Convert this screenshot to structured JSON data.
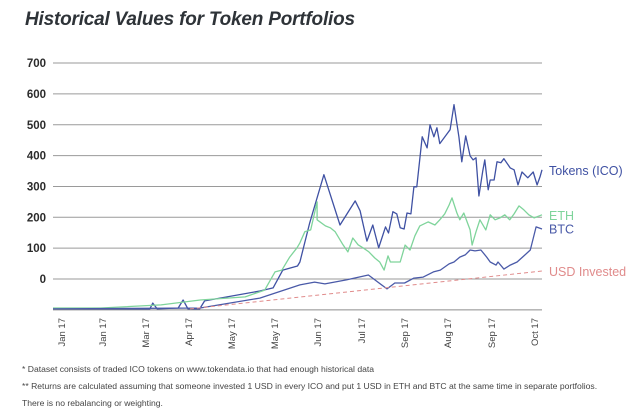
{
  "title": "Historical Values for Token Portfolios",
  "footnotes": [
    "* Dataset consists of traded ICO tokens on www.tokendata.io that had enough historical data",
    "** Returns are calculated assuming that someone invested 1 USD in every ICO and put 1 USD in ETH and BTC at the same time in separate portfolios.",
    "There is no rebalancing or weighting."
  ],
  "chart_data": {
    "type": "line",
    "title": "Historical Values for Token Portfolios",
    "xlabel": "",
    "ylabel": "",
    "ylim": [
      -100,
      700
    ],
    "yticks": [
      0,
      100,
      200,
      300,
      400,
      500,
      600,
      700
    ],
    "ytick_labels": [
      "0",
      "100",
      "200",
      "300",
      "400",
      "500",
      "600",
      "700"
    ],
    "xlim": [
      0,
      1
    ],
    "xticks": [
      0.018,
      0.102,
      0.19,
      0.278,
      0.366,
      0.454,
      0.542,
      0.632,
      0.72,
      0.808,
      0.898,
      0.986
    ],
    "xtick_labels": [
      "Jan 17",
      "Jan 17",
      "Mar 17",
      "Apr 17",
      "May 17",
      "May 17",
      "Jun 17",
      "Jul 17",
      "Sep 17",
      "Aug 17",
      "Sep 17",
      "Oct 17"
    ],
    "grid": true,
    "legend": "right, labels at series end",
    "series": [
      {
        "name": "Tokens (ICO)",
        "color": "#3f51a3",
        "style": "solid",
        "points": [
          [
            0,
            -97
          ],
          [
            0.198,
            -97
          ],
          [
            0.204,
            -78
          ],
          [
            0.213,
            -97
          ],
          [
            0.256,
            -94
          ],
          [
            0.266,
            -68
          ],
          [
            0.276,
            -97
          ],
          [
            0.3,
            -97
          ],
          [
            0.31,
            -71
          ],
          [
            0.423,
            -39
          ],
          [
            0.45,
            -29
          ],
          [
            0.47,
            29
          ],
          [
            0.477,
            32
          ],
          [
            0.5,
            42
          ],
          [
            0.505,
            55
          ],
          [
            0.525,
            182
          ],
          [
            0.554,
            338
          ],
          [
            0.587,
            175
          ],
          [
            0.618,
            253
          ],
          [
            0.628,
            221
          ],
          [
            0.642,
            123
          ],
          [
            0.654,
            175
          ],
          [
            0.666,
            101
          ],
          [
            0.68,
            169
          ],
          [
            0.686,
            149
          ],
          [
            0.695,
            218
          ],
          [
            0.703,
            211
          ],
          [
            0.71,
            166
          ],
          [
            0.718,
            162
          ],
          [
            0.724,
            214
          ],
          [
            0.732,
            211
          ],
          [
            0.738,
            299
          ],
          [
            0.744,
            299
          ],
          [
            0.755,
            461
          ],
          [
            0.765,
            425
          ],
          [
            0.771,
            500
          ],
          [
            0.779,
            461
          ],
          [
            0.785,
            490
          ],
          [
            0.791,
            439
          ],
          [
            0.806,
            471
          ],
          [
            0.812,
            484
          ],
          [
            0.812,
            484
          ],
          [
            0.82,
            565
          ],
          [
            0.83,
            461
          ],
          [
            0.836,
            380
          ],
          [
            0.844,
            464
          ],
          [
            0.853,
            399
          ],
          [
            0.859,
            386
          ],
          [
            0.865,
            393
          ],
          [
            0.871,
            269
          ],
          [
            0.879,
            351
          ],
          [
            0.883,
            386
          ],
          [
            0.89,
            289
          ],
          [
            0.894,
            321
          ],
          [
            0.902,
            321
          ],
          [
            0.908,
            380
          ],
          [
            0.916,
            377
          ],
          [
            0.922,
            390
          ],
          [
            0.935,
            360
          ],
          [
            0.943,
            354
          ],
          [
            0.951,
            305
          ],
          [
            0.959,
            347
          ],
          [
            0.971,
            328
          ],
          [
            0.982,
            347
          ],
          [
            0.99,
            305
          ],
          [
            0.996,
            331
          ],
          [
            1.0,
            354
          ]
        ]
      },
      {
        "name": "ETH",
        "color": "#7fd49b",
        "style": "solid",
        "points": [
          [
            0,
            -94
          ],
          [
            0.098,
            -94
          ],
          [
            0.221,
            -84
          ],
          [
            0.301,
            -68
          ],
          [
            0.393,
            -58
          ],
          [
            0.433,
            -36
          ],
          [
            0.454,
            23
          ],
          [
            0.468,
            29
          ],
          [
            0.484,
            71
          ],
          [
            0.499,
            101
          ],
          [
            0.505,
            117
          ],
          [
            0.515,
            153
          ],
          [
            0.527,
            159
          ],
          [
            0.54,
            250
          ],
          [
            0.54,
            192
          ],
          [
            0.557,
            172
          ],
          [
            0.567,
            166
          ],
          [
            0.577,
            153
          ],
          [
            0.593,
            111
          ],
          [
            0.603,
            88
          ],
          [
            0.613,
            133
          ],
          [
            0.624,
            111
          ],
          [
            0.634,
            101
          ],
          [
            0.646,
            88
          ],
          [
            0.658,
            68
          ],
          [
            0.668,
            55
          ],
          [
            0.677,
            29
          ],
          [
            0.685,
            75
          ],
          [
            0.69,
            55
          ],
          [
            0.71,
            55
          ],
          [
            0.72,
            110
          ],
          [
            0.73,
            94
          ],
          [
            0.74,
            140
          ],
          [
            0.75,
            172
          ],
          [
            0.767,
            185
          ],
          [
            0.781,
            175
          ],
          [
            0.791,
            192
          ],
          [
            0.801,
            211
          ],
          [
            0.81,
            240
          ],
          [
            0.816,
            263
          ],
          [
            0.826,
            214
          ],
          [
            0.832,
            192
          ],
          [
            0.84,
            214
          ],
          [
            0.853,
            159
          ],
          [
            0.857,
            110
          ],
          [
            0.865,
            153
          ],
          [
            0.873,
            192
          ],
          [
            0.885,
            159
          ],
          [
            0.894,
            208
          ],
          [
            0.904,
            192
          ],
          [
            0.914,
            198
          ],
          [
            0.924,
            208
          ],
          [
            0.934,
            192
          ],
          [
            0.943,
            211
          ],
          [
            0.953,
            237
          ],
          [
            0.963,
            224
          ],
          [
            0.973,
            208
          ],
          [
            0.984,
            198
          ],
          [
            1.0,
            208
          ]
        ]
      },
      {
        "name": "BTC",
        "color": "#4a5aa8",
        "style": "solid",
        "points": [
          [
            0,
            -97
          ],
          [
            0.301,
            -94
          ],
          [
            0.423,
            -62
          ],
          [
            0.505,
            -19
          ],
          [
            0.535,
            -10
          ],
          [
            0.556,
            -16
          ],
          [
            0.6,
            -3
          ],
          [
            0.6,
            -3
          ],
          [
            0.645,
            13
          ],
          [
            0.683,
            -32
          ],
          [
            0.699,
            -13
          ],
          [
            0.719,
            -13
          ],
          [
            0.738,
            3
          ],
          [
            0.757,
            6
          ],
          [
            0.778,
            23
          ],
          [
            0.792,
            29
          ],
          [
            0.81,
            49
          ],
          [
            0.82,
            55
          ],
          [
            0.832,
            71
          ],
          [
            0.843,
            78
          ],
          [
            0.853,
            94
          ],
          [
            0.863,
            91
          ],
          [
            0.875,
            94
          ],
          [
            0.887,
            71
          ],
          [
            0.894,
            55
          ],
          [
            0.906,
            45
          ],
          [
            0.91,
            55
          ],
          [
            0.922,
            32
          ],
          [
            0.935,
            45
          ],
          [
            0.949,
            55
          ],
          [
            0.963,
            75
          ],
          [
            0.976,
            94
          ],
          [
            0.988,
            169
          ],
          [
            1.0,
            162
          ]
        ]
      },
      {
        "name": "USD Invested",
        "color": "#e08b8b",
        "style": "dashed",
        "points": [
          [
            0.28,
            -97
          ],
          [
            1.0,
            26
          ]
        ]
      }
    ],
    "legend_entries": [
      {
        "label": "Tokens (ICO)",
        "color": "#3f51a3",
        "anchor_value": 350
      },
      {
        "label": "ETH",
        "color": "#7fd49b",
        "anchor_value": 205
      },
      {
        "label": "BTC",
        "color": "#4a5aa8",
        "anchor_value": 160
      },
      {
        "label": "USD Invested",
        "color": "#e08b8b",
        "anchor_value": 22
      }
    ]
  }
}
